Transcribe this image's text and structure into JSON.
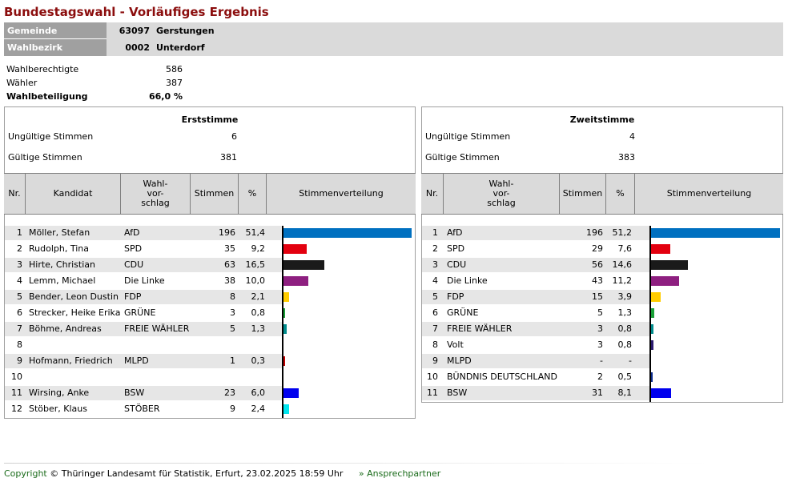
{
  "title": "Bundestagswahl - Vorläufiges Ergebnis",
  "gemeinde": {
    "label": "Gemeinde",
    "number": "63097",
    "name": "Gerstungen"
  },
  "wahlbezirk": {
    "label": "Wahlbezirk",
    "number": "0002",
    "name": "Unterdorf"
  },
  "stats": [
    {
      "label": "Wahlberechtigte",
      "value": "586",
      "bold": false
    },
    {
      "label": "Wähler",
      "value": "387",
      "bold": false
    },
    {
      "label": "Wahlbeteiligung",
      "value": "66,0 %",
      "bold": true
    }
  ],
  "erststimme": {
    "title": "Erststimme",
    "invalid": {
      "label": "Ungültige Stimmen",
      "value": "6"
    },
    "valid": {
      "label": "Gültige Stimmen",
      "value": "381"
    },
    "headers": {
      "nr": "Nr.",
      "kandidat": "Kandidat",
      "wahl": "Wahl-\nvor-\nschlag",
      "stimmen": "Stimmen",
      "pct": "%",
      "dist": "Stimmenverteilung"
    },
    "rows": [
      {
        "nr": "1",
        "kandidat": "Möller, Stefan",
        "partei": "AfD",
        "stimmen": "196",
        "pct": "51,4",
        "share": 51.4,
        "color": "#0070c0"
      },
      {
        "nr": "2",
        "kandidat": "Rudolph, Tina",
        "partei": "SPD",
        "stimmen": "35",
        "pct": "9,2",
        "share": 9.2,
        "color": "#e3000f"
      },
      {
        "nr": "3",
        "kandidat": "Hirte, Christian",
        "partei": "CDU",
        "stimmen": "63",
        "pct": "16,5",
        "share": 16.5,
        "color": "#1a1a1a"
      },
      {
        "nr": "4",
        "kandidat": "Lemm, Michael",
        "partei": "Die Linke",
        "stimmen": "38",
        "pct": "10,0",
        "share": 10.0,
        "color": "#8e1f80"
      },
      {
        "nr": "5",
        "kandidat": "Bender, Leon Dustin",
        "partei": "FDP",
        "stimmen": "8",
        "pct": "2,1",
        "share": 2.1,
        "color": "#ffcc00"
      },
      {
        "nr": "6",
        "kandidat": "Strecker, Heike Erika",
        "partei": "GRÜNE",
        "stimmen": "3",
        "pct": "0,8",
        "share": 0.8,
        "color": "#1aa037"
      },
      {
        "nr": "7",
        "kandidat": "Böhme, Andreas",
        "partei": "FREIE WÄHLER",
        "stimmen": "5",
        "pct": "1,3",
        "share": 1.3,
        "color": "#008b8b"
      },
      {
        "nr": "8",
        "kandidat": "",
        "partei": "",
        "stimmen": "",
        "pct": "",
        "share": 0,
        "color": "#000000"
      },
      {
        "nr": "9",
        "kandidat": "Hofmann, Friedrich",
        "partei": "MLPD",
        "stimmen": "1",
        "pct": "0,3",
        "share": 0.3,
        "color": "#c00000"
      },
      {
        "nr": "10",
        "kandidat": "",
        "partei": "",
        "stimmen": "",
        "pct": "",
        "share": 0,
        "color": "#000000"
      },
      {
        "nr": "11",
        "kandidat": "Wirsing, Anke",
        "partei": "BSW",
        "stimmen": "23",
        "pct": "6,0",
        "share": 6.0,
        "color": "#0000ee"
      },
      {
        "nr": "12",
        "kandidat": "Stöber, Klaus",
        "partei": "STÖBER",
        "stimmen": "9",
        "pct": "2,4",
        "share": 2.4,
        "color": "#00e5ee"
      }
    ]
  },
  "zweitstimme": {
    "title": "Zweitstimme",
    "invalid": {
      "label": "Ungültige Stimmen",
      "value": "4"
    },
    "valid": {
      "label": "Gültige Stimmen",
      "value": "383"
    },
    "headers": {
      "nr": "Nr.",
      "wahl": "Wahl-\nvor-\nschlag",
      "stimmen": "Stimmen",
      "pct": "%",
      "dist": "Stimmenverteilung"
    },
    "rows": [
      {
        "nr": "1",
        "partei": "AfD",
        "stimmen": "196",
        "pct": "51,2",
        "share": 51.2,
        "color": "#0070c0"
      },
      {
        "nr": "2",
        "partei": "SPD",
        "stimmen": "29",
        "pct": "7,6",
        "share": 7.6,
        "color": "#e3000f"
      },
      {
        "nr": "3",
        "partei": "CDU",
        "stimmen": "56",
        "pct": "14,6",
        "share": 14.6,
        "color": "#1a1a1a"
      },
      {
        "nr": "4",
        "partei": "Die Linke",
        "stimmen": "43",
        "pct": "11,2",
        "share": 11.2,
        "color": "#8e1f80"
      },
      {
        "nr": "5",
        "partei": "FDP",
        "stimmen": "15",
        "pct": "3,9",
        "share": 3.9,
        "color": "#ffcc00"
      },
      {
        "nr": "6",
        "partei": "GRÜNE",
        "stimmen": "5",
        "pct": "1,3",
        "share": 1.3,
        "color": "#1aa037"
      },
      {
        "nr": "7",
        "partei": "FREIE WÄHLER",
        "stimmen": "3",
        "pct": "0,8",
        "share": 0.8,
        "color": "#008b8b"
      },
      {
        "nr": "8",
        "partei": "Volt",
        "stimmen": "3",
        "pct": "0,8",
        "share": 0.8,
        "color": "#2a1a6e"
      },
      {
        "nr": "9",
        "partei": "MLPD",
        "stimmen": "-",
        "pct": "-",
        "share": 0,
        "color": "#c00000"
      },
      {
        "nr": "10",
        "partei": "BÜNDNIS DEUTSCHLAND",
        "stimmen": "2",
        "pct": "0,5",
        "share": 0.5,
        "color": "#0a2a8a"
      },
      {
        "nr": "11",
        "partei": "BSW",
        "stimmen": "31",
        "pct": "8,1",
        "share": 8.1,
        "color": "#0000ee"
      }
    ]
  },
  "footer": {
    "copyright_link": "Copyright",
    "copyright_text": "© Thüringer Landesamt für Statistik, Erfurt, 23.02.2025 18:59 Uhr",
    "contact_link": "» Ansprechpartner"
  }
}
